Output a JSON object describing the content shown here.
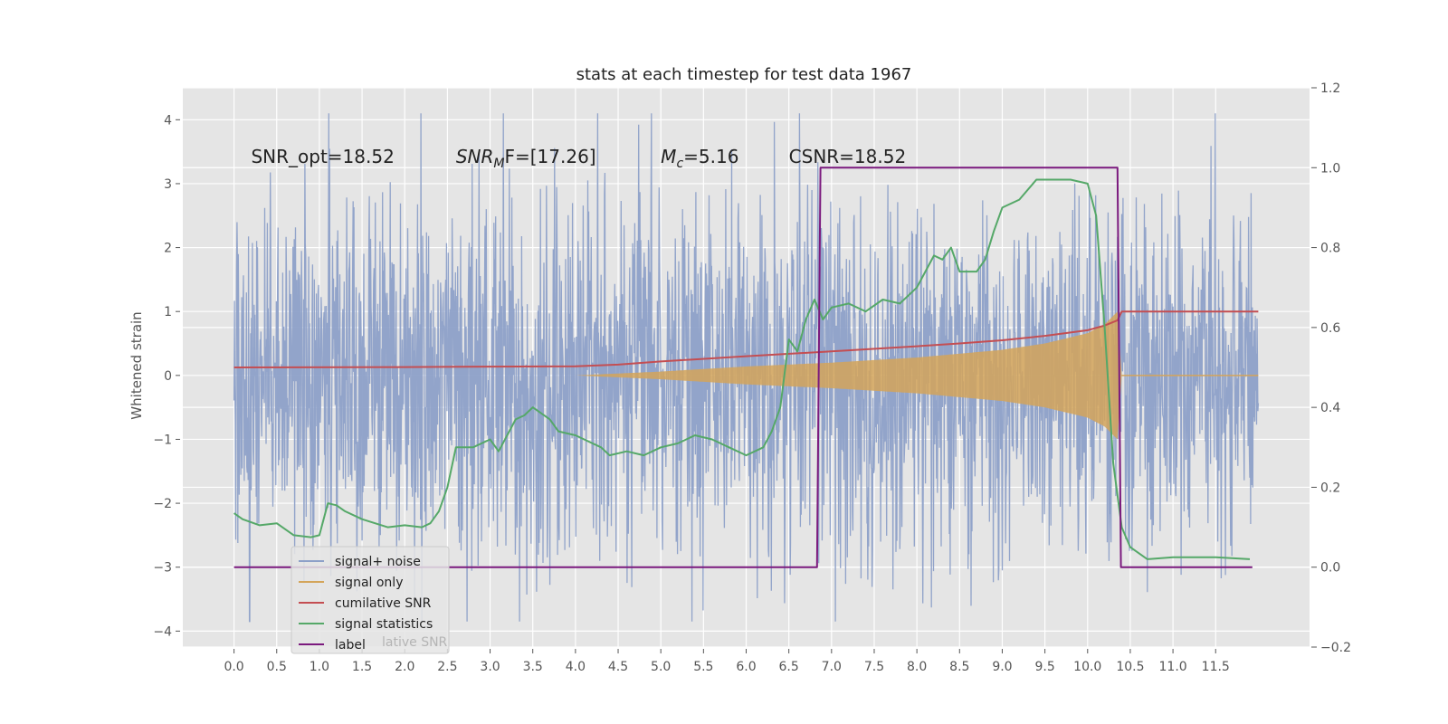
{
  "chart_data": {
    "type": "line",
    "title": "stats at each timestep for test data 1967",
    "ylabel": "Whitened strain",
    "xlabel": "",
    "xlim": [
      -0.6,
      12.6
    ],
    "ylim": [
      -4.25,
      4.5
    ],
    "y2lim": [
      -0.2,
      1.2
    ],
    "x_ticks": [
      "0.0",
      "0.5",
      "1.0",
      "1.5",
      "2.0",
      "2.5",
      "3.0",
      "3.5",
      "4.0",
      "4.5",
      "5.0",
      "5.5",
      "6.0",
      "6.5",
      "7.0",
      "7.5",
      "8.0",
      "8.5",
      "9.0",
      "9.5",
      "10.0",
      "10.5",
      "11.0",
      "11.5"
    ],
    "y_ticks": [
      "4",
      "3",
      "2",
      "1",
      "0",
      "−1",
      "−2",
      "−3",
      "−4"
    ],
    "y2_ticks": [
      "1.2",
      "1.0",
      "0.8",
      "0.6",
      "0.4",
      "0.2",
      "0.0",
      "−0.2"
    ],
    "grid": true,
    "legend_position": "lower-left",
    "annotations": [
      {
        "kind": "plain",
        "text": "SNR_opt=18.52",
        "x": 0.2,
        "y": 3.3
      },
      {
        "kind": "math",
        "main": "SNR",
        "sub": "M",
        "rest": "F=[17.26]",
        "x": 2.6,
        "y": 3.3
      },
      {
        "kind": "math",
        "main": "M",
        "sub": "c",
        "rest": "=5.16",
        "x": 5.0,
        "y": 3.3
      },
      {
        "kind": "plain",
        "text": "CSNR=18.52",
        "x": 6.5,
        "y": 3.3
      }
    ],
    "series": [
      {
        "name": "signal+ noise",
        "axis": "left",
        "color": "#8da0c8",
        "envelope": {
          "x_start": 0.0,
          "x_end": 12.0,
          "mean_amplitude": 1.8,
          "peak_max": 4.1,
          "peak_min": -3.85
        }
      },
      {
        "name": "signal only",
        "axis": "left",
        "color": "#d4a55a",
        "envelope": {
          "x": [
            4.0,
            5.0,
            6.0,
            7.0,
            8.0,
            9.0,
            9.5,
            10.0,
            10.2,
            10.35,
            10.4,
            12.0
          ],
          "amplitude": [
            0.0,
            0.06,
            0.14,
            0.2,
            0.28,
            0.4,
            0.5,
            0.66,
            0.8,
            1.0,
            0.0,
            0.0
          ]
        }
      },
      {
        "name": "cumilative SNR",
        "axis": "right",
        "color": "#c44e52",
        "x": [
          0.0,
          2.0,
          4.0,
          4.5,
          5.0,
          6.0,
          7.0,
          8.0,
          8.5,
          9.0,
          9.5,
          10.0,
          10.2,
          10.35,
          10.4,
          12.0
        ],
        "y": [
          0.5,
          0.501,
          0.503,
          0.507,
          0.515,
          0.528,
          0.54,
          0.553,
          0.56,
          0.568,
          0.579,
          0.593,
          0.605,
          0.618,
          0.64,
          0.64
        ]
      },
      {
        "name": "signal statistics",
        "axis": "right",
        "color": "#55a868",
        "x": [
          0.0,
          0.1,
          0.3,
          0.5,
          0.7,
          0.9,
          1.0,
          1.1,
          1.2,
          1.3,
          1.5,
          1.8,
          2.0,
          2.2,
          2.3,
          2.4,
          2.5,
          2.6,
          2.8,
          3.0,
          3.1,
          3.2,
          3.3,
          3.4,
          3.5,
          3.7,
          3.8,
          4.0,
          4.2,
          4.3,
          4.4,
          4.6,
          4.8,
          5.0,
          5.2,
          5.4,
          5.6,
          5.8,
          6.0,
          6.2,
          6.3,
          6.4,
          6.5,
          6.6,
          6.7,
          6.8,
          6.9,
          7.0,
          7.2,
          7.4,
          7.6,
          7.8,
          8.0,
          8.2,
          8.3,
          8.4,
          8.5,
          8.7,
          8.8,
          8.9,
          9.0,
          9.2,
          9.4,
          9.6,
          9.8,
          10.0,
          10.1,
          10.2,
          10.3,
          10.4,
          10.5,
          10.7,
          11.0,
          11.5,
          11.9
        ],
        "y": [
          0.135,
          0.12,
          0.105,
          0.11,
          0.08,
          0.075,
          0.08,
          0.16,
          0.155,
          0.14,
          0.12,
          0.1,
          0.105,
          0.1,
          0.11,
          0.14,
          0.2,
          0.3,
          0.3,
          0.32,
          0.29,
          0.33,
          0.37,
          0.38,
          0.4,
          0.37,
          0.34,
          0.33,
          0.31,
          0.3,
          0.28,
          0.29,
          0.28,
          0.3,
          0.31,
          0.33,
          0.32,
          0.3,
          0.28,
          0.3,
          0.34,
          0.4,
          0.57,
          0.54,
          0.62,
          0.67,
          0.62,
          0.65,
          0.66,
          0.64,
          0.67,
          0.66,
          0.7,
          0.78,
          0.77,
          0.8,
          0.74,
          0.74,
          0.77,
          0.84,
          0.9,
          0.92,
          0.97,
          0.97,
          0.97,
          0.96,
          0.88,
          0.6,
          0.26,
          0.1,
          0.05,
          0.02,
          0.025,
          0.025,
          0.02
        ]
      },
      {
        "name": "label",
        "axis": "right",
        "color": "#7b1a7e",
        "x": [
          0.0,
          6.83,
          6.87,
          10.35,
          10.39,
          11.93
        ],
        "y": [
          0.0,
          0.0,
          1.0,
          1.0,
          0.0,
          0.0
        ]
      }
    ],
    "legend": [
      "signal+ noise",
      "signal only",
      "cumilative SNR",
      "signal statistics",
      "label"
    ],
    "legend_hidden_text": "lative SNR"
  }
}
